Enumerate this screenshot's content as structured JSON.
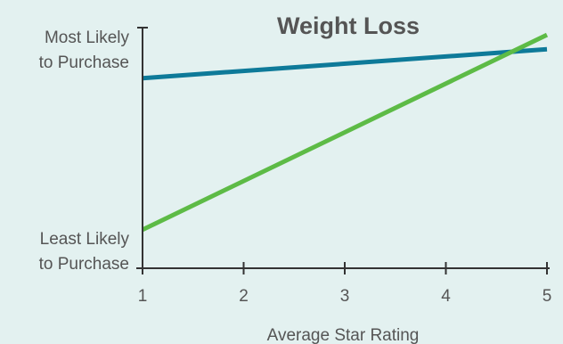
{
  "chart_data": {
    "type": "line",
    "title": "Weight Loss",
    "xlabel": "Average Star Rating",
    "ylabel_top": [
      "Most Likely",
      "to Purchase"
    ],
    "ylabel_bottom": [
      "Least Likely",
      "to Purchase"
    ],
    "x_ticks": [
      "1",
      "2",
      "3",
      "4",
      "5"
    ],
    "xlim": [
      1,
      5
    ],
    "ylim": [
      0,
      1
    ],
    "grid": false,
    "series": [
      {
        "color": "#0e7a99",
        "x": [
          1,
          5
        ],
        "y": [
          0.79,
          0.91
        ]
      },
      {
        "color": "#5dbb46",
        "x": [
          1,
          5
        ],
        "y": [
          0.16,
          0.97
        ]
      }
    ]
  }
}
